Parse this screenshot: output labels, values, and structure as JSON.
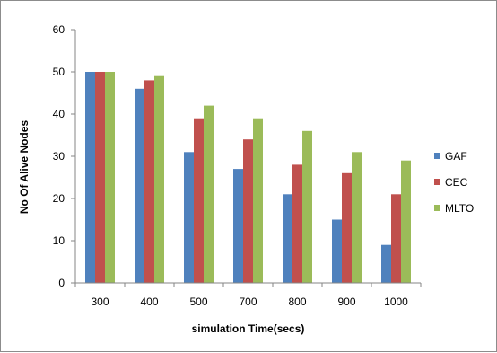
{
  "chart_data": {
    "type": "bar",
    "title": "",
    "xlabel": "simulation Time(secs)",
    "ylabel": "No Of Alive Nodes",
    "categories": [
      "300",
      "400",
      "500",
      "700",
      "800",
      "900",
      "1000"
    ],
    "ylim": [
      0,
      60
    ],
    "yticks": [
      0,
      10,
      20,
      30,
      40,
      50,
      60
    ],
    "grid": false,
    "legend_position": "right",
    "series": [
      {
        "name": "GAF",
        "color": "#4f81bd",
        "values": [
          50,
          46,
          31,
          27,
          21,
          15,
          9
        ]
      },
      {
        "name": "CEC",
        "color": "#c0504d",
        "values": [
          50,
          48,
          39,
          34,
          28,
          26,
          21
        ]
      },
      {
        "name": "MLTO",
        "color": "#9bbb59",
        "values": [
          50,
          49,
          42,
          39,
          36,
          31,
          29
        ]
      }
    ]
  }
}
